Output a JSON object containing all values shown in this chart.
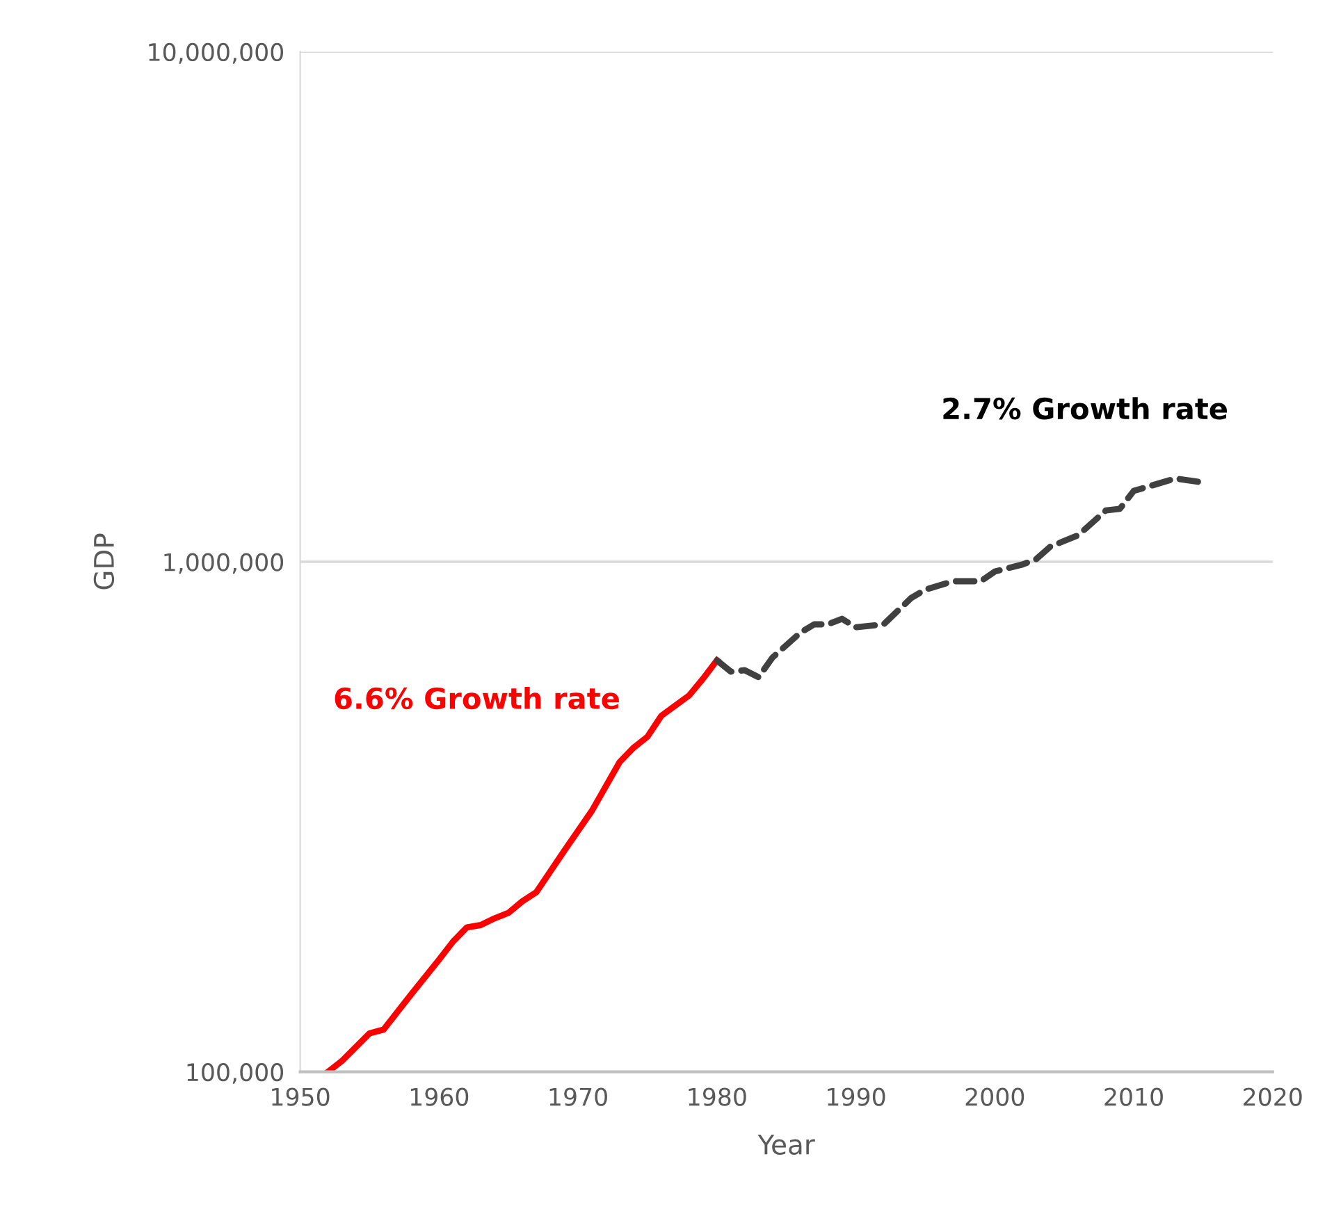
{
  "chart_data": {
    "type": "line",
    "xlabel": "Year",
    "ylabel": "GDP",
    "xlim": [
      1950,
      2020
    ],
    "xticks": [
      1950,
      1960,
      1970,
      1980,
      1990,
      2000,
      2010,
      2020
    ],
    "ylim": [
      100000,
      10000000
    ],
    "yticks": [
      {
        "value": 100000,
        "label": "100,000"
      },
      {
        "value": 1000000,
        "label": "1,000,000"
      },
      {
        "value": 10000000,
        "label": "10,000,000"
      }
    ],
    "log": "y",
    "grid": "y",
    "marker": "none",
    "series": [
      {
        "color": "#ff0000",
        "line_style": "solid",
        "x": [
          1952,
          1953,
          1955,
          1956,
          1958,
          1960,
          1961,
          1962,
          1963,
          1964,
          1965,
          1966,
          1967,
          1969,
          1971,
          1973,
          1974,
          1975,
          1976,
          1978,
          1979,
          1980
        ],
        "values": [
          100000,
          105000,
          119000,
          121000,
          142000,
          166000,
          180000,
          192000,
          194000,
          200000,
          205000,
          216000,
          225000,
          271000,
          325000,
          405000,
          432000,
          454000,
          499000,
          547000,
          590000,
          641000
        ]
      },
      {
        "color": "#404040",
        "line_style": "dashed",
        "x": [
          1980,
          1981,
          1982,
          1983,
          1984,
          1986,
          1987,
          1988,
          1989,
          1990,
          1992,
          1994,
          1995,
          1997,
          1999,
          2000,
          2002,
          2003,
          2004,
          2006,
          2008,
          2009,
          2010,
          2011,
          2013,
          2015
        ],
        "values": [
          641000,
          609000,
          613000,
          594000,
          649000,
          726000,
          754000,
          754000,
          773000,
          744000,
          754000,
          850000,
          882000,
          916000,
          916000,
          957000,
          988000,
          1013000,
          1071000,
          1127000,
          1261000,
          1270000,
          1377000,
          1403000,
          1457000,
          1430000
        ]
      }
    ],
    "annotations": [
      "6.6% Growth rate",
      "2.7% Growth rate"
    ]
  }
}
